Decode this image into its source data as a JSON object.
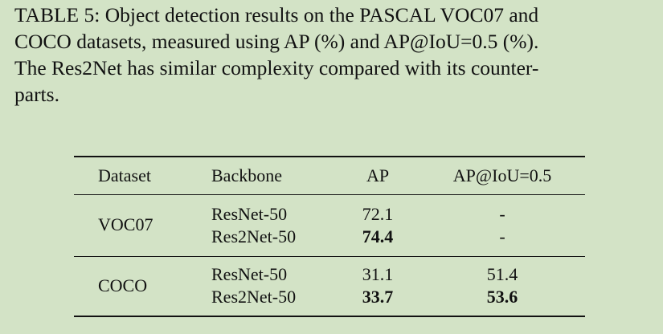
{
  "caption": {
    "line1": "TABLE 5: Object detection results on the PASCAL VOC07 and",
    "line2": "COCO datasets, measured using AP (%) and AP@IoU=0.5 (%).",
    "line3": "The Res2Net has similar complexity compared with its counter-",
    "line4": "parts."
  },
  "table": {
    "headers": [
      "Dataset",
      "Backbone",
      "AP",
      "AP@IoU=0.5"
    ],
    "groups": [
      {
        "dataset": "VOC07",
        "rows": [
          {
            "backbone": "ResNet-50",
            "ap": "72.1",
            "ap50": "-",
            "ap_bold": false,
            "ap50_bold": false
          },
          {
            "backbone": "Res2Net-50",
            "ap": "74.4",
            "ap50": "-",
            "ap_bold": true,
            "ap50_bold": false
          }
        ]
      },
      {
        "dataset": "COCO",
        "rows": [
          {
            "backbone": "ResNet-50",
            "ap": "31.1",
            "ap50": "51.4",
            "ap_bold": false,
            "ap50_bold": false
          },
          {
            "backbone": "Res2Net-50",
            "ap": "33.7",
            "ap50": "53.6",
            "ap_bold": true,
            "ap50_bold": true
          }
        ]
      }
    ]
  }
}
